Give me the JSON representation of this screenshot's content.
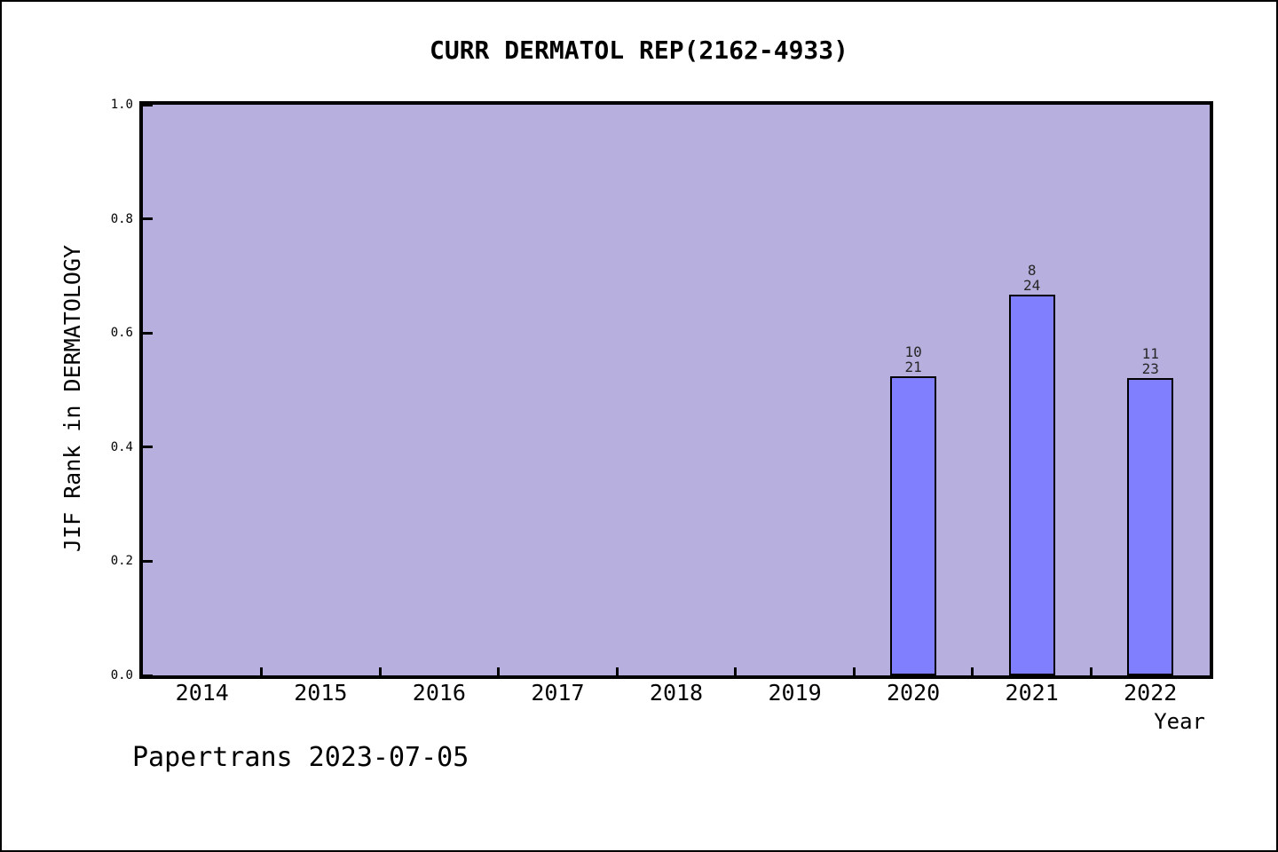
{
  "chart_data": {
    "type": "bar",
    "title": "CURR DERMATOL REP(2162-4933)",
    "xlabel": "Year",
    "ylabel": "JIF Rank in DERMATOLOGY",
    "categories": [
      "2014",
      "2015",
      "2016",
      "2017",
      "2018",
      "2019",
      "2020",
      "2021",
      "2022"
    ],
    "values": [
      null,
      null,
      null,
      null,
      null,
      null,
      0.5238,
      0.6667,
      0.5217
    ],
    "bars": [
      {
        "year": "2020",
        "rank": 10,
        "total": 21,
        "value": 0.5238,
        "label_lines": [
          "10",
          "21"
        ]
      },
      {
        "year": "2021",
        "rank": 8,
        "total": 24,
        "value": 0.6667,
        "label_lines": [
          "8",
          "24"
        ]
      },
      {
        "year": "2022",
        "rank": 11,
        "total": 23,
        "value": 0.5217,
        "label_lines": [
          "11",
          "23"
        ]
      }
    ],
    "ylim": [
      0.0,
      1.0
    ],
    "yticks": [
      0.0,
      0.2,
      0.4,
      0.6,
      0.8,
      1.0
    ],
    "ytick_labels": [
      "0.0",
      "0.2",
      "0.4",
      "0.6",
      "0.8",
      "1.0"
    ],
    "grid": false,
    "legend": null,
    "colors": {
      "plot_background": "#b7b0df",
      "bar_fill": "#8080ff",
      "bar_edge": "#000000",
      "text": "#000000"
    },
    "annotation": "Papertrans 2023-07-05"
  }
}
